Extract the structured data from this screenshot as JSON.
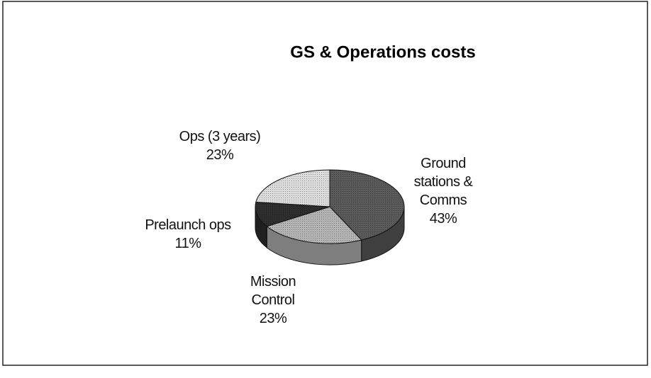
{
  "chart_data": {
    "type": "pie",
    "title": "GS & Operations costs",
    "categories": [
      "Ground stations & Comms",
      "Mission Control",
      "Prelaunch ops",
      "Ops (3 years)"
    ],
    "values": [
      43,
      23,
      11,
      23
    ],
    "value_labels": [
      "43%",
      "23%",
      "11%",
      "23%"
    ],
    "colors": [
      "#5a5a5a",
      "#b4b4b4",
      "#2e2e2e",
      "#dcdcdc"
    ]
  }
}
